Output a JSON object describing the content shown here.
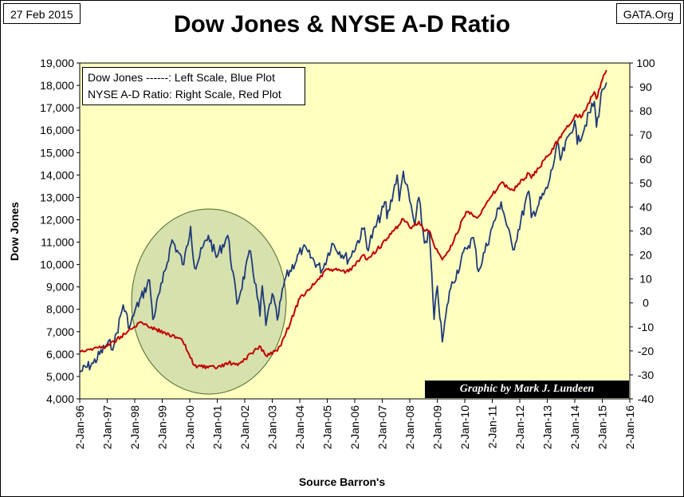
{
  "header": {
    "date": "27 Feb 2015",
    "site": "GATA.Org"
  },
  "legend": {
    "line1": "Dow Jones ------: Left Scale, Blue Plot",
    "line2": "NYSE A-D Ratio:  Right Scale, Red Plot"
  },
  "credit": "Graphic by Mark J. Lundeen",
  "colors": {
    "background": "#ffffc0",
    "dow": "#1f3a7a",
    "ad": "#c00000",
    "circle_fill": "#c8d7a8",
    "circle_stroke": "#4a6a2a"
  },
  "chart_data": {
    "type": "line",
    "title": "Dow Jones & NYSE A-D Ratio",
    "xlabel": "Source Barron's",
    "ylabel": "Dow Jones",
    "ylim": [
      4000,
      19000
    ],
    "y2lim": [
      -40,
      100
    ],
    "xlim": [
      "1996-01-02",
      "2016-01-02"
    ],
    "x_tick_labels": [
      "2-Jan-96",
      "2-Jan-97",
      "2-Jan-98",
      "2-Jan-99",
      "2-Jan-00",
      "2-Jan-01",
      "2-Jan-02",
      "2-Jan-03",
      "2-Jan-04",
      "2-Jan-05",
      "2-Jan-06",
      "2-Jan-07",
      "2-Jan-08",
      "2-Jan-09",
      "2-Jan-10",
      "2-Jan-11",
      "2-Jan-12",
      "2-Jan-13",
      "2-Jan-14",
      "2-Jan-15",
      "2-Jan-16"
    ],
    "y_tick_labels": [
      "4,000",
      "5,000",
      "6,000",
      "7,000",
      "8,000",
      "9,000",
      "10,000",
      "11,000",
      "12,000",
      "13,000",
      "14,000",
      "15,000",
      "16,000",
      "17,000",
      "18,000",
      "19,000"
    ],
    "y2_tick_labels": [
      "-40",
      "-30",
      "-20",
      "-10",
      "0",
      "10",
      "20",
      "30",
      "40",
      "50",
      "60",
      "70",
      "80",
      "90",
      "100"
    ],
    "grid": false,
    "series": [
      {
        "axis": "left",
        "x": [
          "1996-01-02",
          "1996-07-01",
          "1997-01-02",
          "1997-04-01",
          "1997-08-01",
          "1997-10-27",
          "1998-01-02",
          "1998-07-17",
          "1998-08-31",
          "1999-01-04",
          "1999-05-13",
          "1999-10-15",
          "2000-01-14",
          "2000-03-07",
          "2000-09-06",
          "2000-12-20",
          "2001-05-21",
          "2001-09-21",
          "2002-03-19",
          "2002-07-23",
          "2002-08-22",
          "2002-10-09",
          "2003-01-02",
          "2003-03-11",
          "2003-06-16",
          "2004-02-11",
          "2004-10-25",
          "2005-03-04",
          "2005-10-13",
          "2006-05-10",
          "2006-06-13",
          "2007-02-20",
          "2007-03-05",
          "2007-07-19",
          "2007-08-16",
          "2007-10-09",
          "2008-03-10",
          "2008-05-02",
          "2008-07-15",
          "2008-09-19",
          "2008-11-20",
          "2009-01-02",
          "2009-03-09",
          "2009-06-12",
          "2010-01-19",
          "2010-04-26",
          "2010-07-02",
          "2011-01-03",
          "2011-04-29",
          "2011-10-03",
          "2012-05-01",
          "2012-06-04",
          "2013-01-02",
          "2013-05-28",
          "2013-06-24",
          "2014-01-02",
          "2014-02-03",
          "2014-09-19",
          "2014-10-16",
          "2015-01-02",
          "2015-02-27"
        ],
        "values": [
          5200,
          5600,
          6450,
          6400,
          8200,
          7200,
          7900,
          9300,
          7550,
          9200,
          11100,
          10000,
          11700,
          9850,
          11300,
          10320,
          11300,
          8235,
          10600,
          7700,
          9050,
          7286,
          8700,
          7524,
          9300,
          10737,
          9750,
          10940,
          10200,
          11640,
          10720,
          12786,
          12050,
          14000,
          12850,
          14164,
          11750,
          13000,
          10960,
          11390,
          7550,
          9030,
          6547,
          8800,
          10725,
          11205,
          9686,
          11670,
          12800,
          10655,
          13279,
          12100,
          13410,
          15400,
          14660,
          16440,
          15372,
          17280,
          16140,
          17830,
          18130
        ]
      },
      {
        "axis": "right",
        "x": [
          "1996-01-02",
          "1996-07-01",
          "1997-01-02",
          "1997-07-01",
          "1998-04-01",
          "1998-10-01",
          "1999-04-01",
          "1999-10-01",
          "2000-03-01",
          "2000-09-01",
          "2001-01-02",
          "2001-06-01",
          "2001-10-01",
          "2002-04-01",
          "2002-07-15",
          "2002-10-09",
          "2003-03-11",
          "2003-06-16",
          "2004-01-02",
          "2004-08-13",
          "2005-01-03",
          "2005-10-13",
          "2006-05-10",
          "2006-06-13",
          "2007-02-20",
          "2007-06-01",
          "2007-10-09",
          "2008-01-22",
          "2008-05-02",
          "2008-07-15",
          "2008-09-19",
          "2008-11-20",
          "2009-03-09",
          "2009-06-12",
          "2010-01-19",
          "2010-07-02",
          "2011-01-03",
          "2011-04-29",
          "2011-10-03",
          "2012-05-01",
          "2012-06-04",
          "2013-01-02",
          "2013-05-28",
          "2014-01-02",
          "2014-04-11",
          "2014-09-19",
          "2014-10-16",
          "2015-01-02",
          "2015-02-27"
        ],
        "values": [
          -20,
          -19,
          -18,
          -14,
          -8,
          -11,
          -13,
          -16,
          -26,
          -27,
          -27,
          -25,
          -26,
          -21,
          -18,
          -22,
          -20,
          -14,
          2,
          9,
          14,
          13,
          20,
          18,
          26,
          30,
          35,
          31,
          34,
          30,
          30,
          24,
          18,
          22,
          38,
          36,
          45,
          50,
          47,
          54,
          52,
          61,
          68,
          78,
          78,
          88,
          85,
          93,
          97
        ]
      }
    ]
  }
}
